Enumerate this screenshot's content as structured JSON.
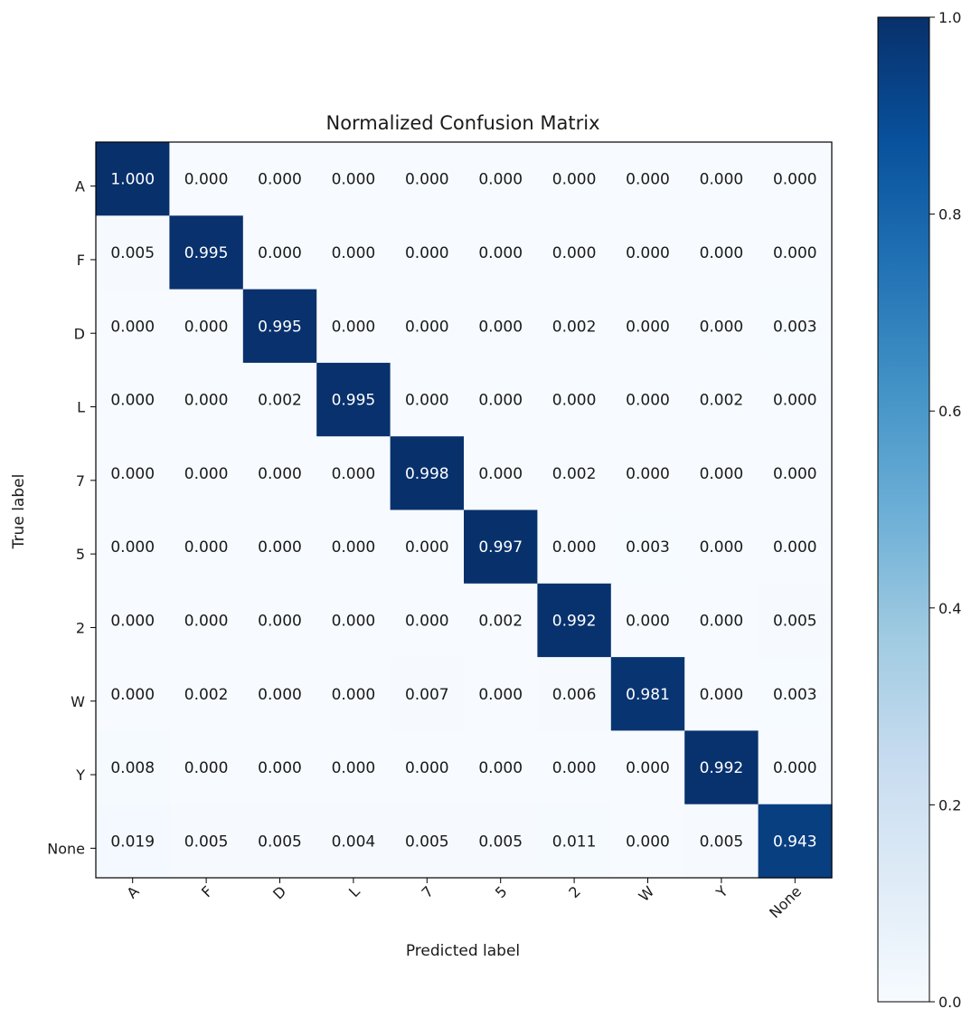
{
  "chart_data": {
    "type": "heatmap",
    "title": "Normalized Confusion Matrix",
    "xlabel": "Predicted label",
    "ylabel": "True label",
    "x_categories": [
      "A",
      "F",
      "D",
      "L",
      "7",
      "5",
      "2",
      "W",
      "Y",
      "None"
    ],
    "y_categories": [
      "A",
      "F",
      "D",
      "L",
      "7",
      "5",
      "2",
      "W",
      "Y",
      "None"
    ],
    "values": [
      [
        1.0,
        0.0,
        0.0,
        0.0,
        0.0,
        0.0,
        0.0,
        0.0,
        0.0,
        0.0
      ],
      [
        0.005,
        0.995,
        0.0,
        0.0,
        0.0,
        0.0,
        0.0,
        0.0,
        0.0,
        0.0
      ],
      [
        0.0,
        0.0,
        0.995,
        0.0,
        0.0,
        0.0,
        0.002,
        0.0,
        0.0,
        0.003
      ],
      [
        0.0,
        0.0,
        0.002,
        0.995,
        0.0,
        0.0,
        0.0,
        0.0,
        0.002,
        0.0
      ],
      [
        0.0,
        0.0,
        0.0,
        0.0,
        0.998,
        0.0,
        0.002,
        0.0,
        0.0,
        0.0
      ],
      [
        0.0,
        0.0,
        0.0,
        0.0,
        0.0,
        0.997,
        0.0,
        0.003,
        0.0,
        0.0
      ],
      [
        0.0,
        0.0,
        0.0,
        0.0,
        0.0,
        0.002,
        0.992,
        0.0,
        0.0,
        0.005
      ],
      [
        0.0,
        0.002,
        0.0,
        0.0,
        0.007,
        0.0,
        0.006,
        0.981,
        0.0,
        0.003
      ],
      [
        0.008,
        0.0,
        0.0,
        0.0,
        0.0,
        0.0,
        0.0,
        0.0,
        0.992,
        0.0
      ],
      [
        0.019,
        0.005,
        0.005,
        0.004,
        0.005,
        0.005,
        0.011,
        0.0,
        0.005,
        0.943
      ]
    ],
    "value_format": "3 decimals",
    "colormap": "Blues",
    "color_range": [
      0.0,
      1.0
    ],
    "colorbar": {
      "ticks": [
        0.0,
        0.2,
        0.4,
        0.6,
        0.8,
        1.0
      ],
      "tick_labels": [
        "0.0",
        "0.2",
        "0.4",
        "0.6",
        "0.8",
        "1.0"
      ]
    },
    "grid": false,
    "colorbar_position": "right",
    "x_tick_rotation_deg": 45
  }
}
